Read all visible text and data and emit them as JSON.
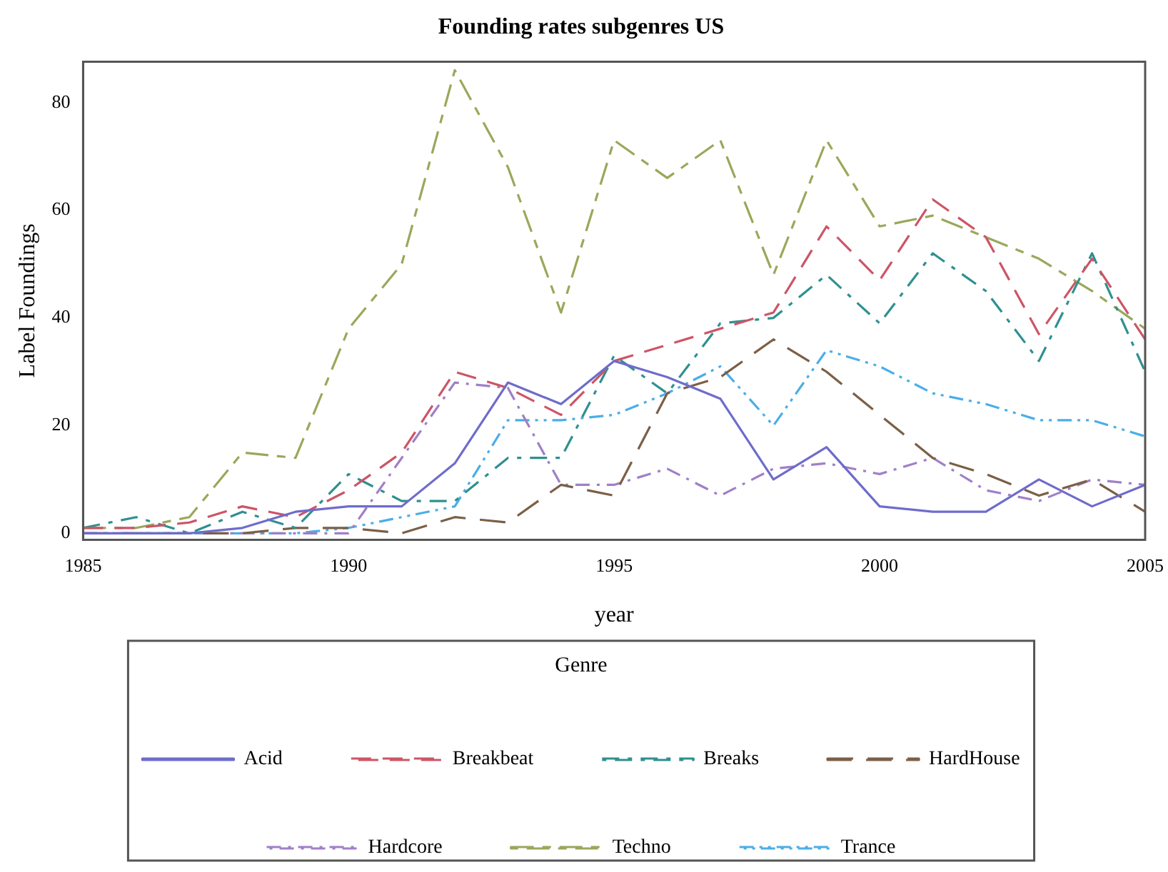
{
  "chart_data": {
    "type": "line",
    "title": "Founding rates subgenres US",
    "xlabel": "year",
    "ylabel": "Label Foundings",
    "legend_title": "Genre",
    "x": [
      1985,
      1986,
      1987,
      1988,
      1989,
      1990,
      1991,
      1992,
      1993,
      1994,
      1995,
      1996,
      1997,
      1998,
      1999,
      2000,
      2001,
      2002,
      2003,
      2004,
      2005
    ],
    "series": [
      {
        "name": "Acid",
        "color": "#6e6ccb",
        "line_style": "solid",
        "values": [
          0,
          0,
          0,
          1,
          4,
          5,
          5,
          13,
          28,
          24,
          32,
          29,
          25,
          10,
          16,
          5,
          4,
          4,
          10,
          5,
          9
        ]
      },
      {
        "name": "Breakbeat",
        "color": "#cc5566",
        "line_style": "dashed",
        "values": [
          1,
          1,
          2,
          5,
          3,
          8,
          15,
          30,
          27,
          22,
          32,
          35,
          38,
          41,
          57,
          47,
          62,
          55,
          37,
          51,
          36
        ]
      },
      {
        "name": "Breaks",
        "color": "#2f9090",
        "line_style": "dashed",
        "values": [
          1,
          3,
          0,
          4,
          1,
          11,
          6,
          6,
          14,
          14,
          33,
          26,
          39,
          40,
          48,
          39,
          52,
          45,
          32,
          52,
          30
        ]
      },
      {
        "name": "HardHouse",
        "color": "#7b5f46",
        "line_style": "dashed",
        "values": [
          0,
          0,
          0,
          0,
          1,
          1,
          0,
          3,
          2,
          9,
          7,
          26,
          29,
          36,
          30,
          22,
          14,
          11,
          7,
          10,
          4
        ]
      },
      {
        "name": "Hardcore",
        "color": "#a07fc8",
        "line_style": "dashed",
        "values": [
          0,
          0,
          0,
          0,
          0,
          0,
          14,
          28,
          27,
          9,
          9,
          12,
          7,
          12,
          13,
          11,
          14,
          8,
          6,
          10,
          9
        ]
      },
      {
        "name": "Techno",
        "color": "#99a85a",
        "line_style": "dashed",
        "values": [
          1,
          1,
          3,
          15,
          14,
          38,
          50,
          86,
          68,
          41,
          73,
          66,
          73,
          48,
          73,
          57,
          59,
          55,
          51,
          45,
          38
        ]
      },
      {
        "name": "Trance",
        "color": "#4aaee8",
        "line_style": "dashed",
        "values": [
          0,
          0,
          0,
          0,
          0,
          1,
          3,
          5,
          21,
          21,
          22,
          26,
          31,
          20,
          34,
          31,
          26,
          24,
          21,
          21,
          18
        ]
      }
    ],
    "xlim": [
      1985,
      2005
    ],
    "xticks": [
      1985,
      1990,
      1995,
      2000,
      2005
    ],
    "ylim": [
      -1.2,
      87.6
    ],
    "yticks": [
      0,
      20,
      40,
      60,
      80
    ],
    "grid": false,
    "legend": "bottom",
    "marker": "none"
  }
}
